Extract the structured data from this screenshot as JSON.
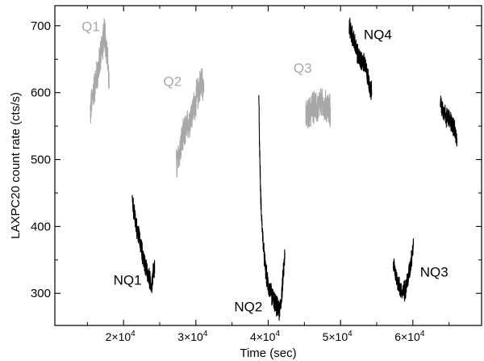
{
  "chart_data": {
    "type": "line",
    "xlabel": "Time (sec)",
    "ylabel": "LAXPC20 count rate (cts/s)",
    "xlim": [
      10500,
      69500
    ],
    "ylim": [
      252,
      730
    ],
    "grid": false,
    "x_ticks": [
      {
        "value": 20000,
        "mantissa": "2×10",
        "exp": "4"
      },
      {
        "value": 30000,
        "mantissa": "3×10",
        "exp": "4"
      },
      {
        "value": 40000,
        "mantissa": "4×10",
        "exp": "4"
      },
      {
        "value": 50000,
        "mantissa": "5×10",
        "exp": "4"
      },
      {
        "value": 60000,
        "mantissa": "6×10",
        "exp": "4"
      }
    ],
    "y_ticks": [
      300,
      400,
      500,
      600,
      700
    ],
    "colors": {
      "Q": "#a8a8a8",
      "NQ": "#000000",
      "axis": "#000000"
    },
    "segments": [
      {
        "label": "Q1",
        "class": "Q",
        "start": 15400,
        "end": 18000,
        "points": [
          [
            15400,
            570
          ],
          [
            15800,
            600
          ],
          [
            16200,
            620
          ],
          [
            16600,
            640
          ],
          [
            17000,
            670
          ],
          [
            17400,
            690
          ],
          [
            17800,
            650
          ],
          [
            18000,
            610
          ]
        ]
      },
      {
        "label": "Q2",
        "class": "Q",
        "start": 27300,
        "end": 31100,
        "points": [
          [
            27300,
            490
          ],
          [
            27800,
            515
          ],
          [
            28300,
            535
          ],
          [
            28800,
            550
          ],
          [
            29300,
            565
          ],
          [
            29800,
            580
          ],
          [
            30300,
            600
          ],
          [
            30800,
            620
          ],
          [
            31100,
            610
          ]
        ]
      },
      {
        "label": "Q3",
        "class": "Q",
        "start": 45200,
        "end": 48600,
        "points": [
          [
            45200,
            560
          ],
          [
            45700,
            570
          ],
          [
            46200,
            580
          ],
          [
            46700,
            575
          ],
          [
            47200,
            585
          ],
          [
            47700,
            575
          ],
          [
            48200,
            580
          ],
          [
            48600,
            570
          ]
        ]
      },
      {
        "label": "NQ1",
        "class": "NQ",
        "start": 21200,
        "end": 24300,
        "points": [
          [
            21200,
            440
          ],
          [
            21600,
            410
          ],
          [
            22000,
            390
          ],
          [
            22400,
            370
          ],
          [
            22800,
            350
          ],
          [
            23200,
            335
          ],
          [
            23600,
            320
          ],
          [
            23900,
            312
          ],
          [
            24100,
            330
          ],
          [
            24300,
            342
          ]
        ]
      },
      {
        "label": "NQ2",
        "class": "NQ",
        "start": 38700,
        "end": 42300,
        "points": [
          [
            38700,
            595
          ],
          [
            38800,
            520
          ],
          [
            38950,
            450
          ],
          [
            39150,
            400
          ],
          [
            39400,
            360
          ],
          [
            39700,
            330
          ],
          [
            40000,
            312
          ],
          [
            40400,
            300
          ],
          [
            40800,
            290
          ],
          [
            41200,
            280
          ],
          [
            41500,
            272
          ],
          [
            41800,
            290
          ],
          [
            42100,
            330
          ],
          [
            42300,
            360
          ]
        ]
      },
      {
        "label": "NQ3",
        "class": "NQ",
        "start": 57300,
        "end": 60100,
        "points": [
          [
            57300,
            345
          ],
          [
            57700,
            325
          ],
          [
            58100,
            312
          ],
          [
            58500,
            300
          ],
          [
            58900,
            305
          ],
          [
            59300,
            320
          ],
          [
            59700,
            345
          ],
          [
            60100,
            375
          ]
        ]
      },
      {
        "label": "NQ4",
        "class": "NQ",
        "start": 51200,
        "end": 54300,
        "points": [
          [
            51200,
            700
          ],
          [
            51600,
            685
          ],
          [
            52000,
            672
          ],
          [
            52400,
            655
          ],
          [
            52800,
            648
          ],
          [
            53200,
            645
          ],
          [
            53600,
            632
          ],
          [
            54000,
            612
          ],
          [
            54300,
            600
          ]
        ]
      },
      {
        "label": "",
        "class": "NQ",
        "start": 63800,
        "end": 66100,
        "points": [
          [
            63800,
            585
          ],
          [
            64200,
            575
          ],
          [
            64600,
            565
          ],
          [
            65000,
            560
          ],
          [
            65400,
            555
          ],
          [
            65800,
            545
          ],
          [
            66100,
            525
          ]
        ]
      }
    ],
    "annotations": [
      {
        "text": "Q1",
        "class": "Q",
        "x": 14200,
        "y": 692
      },
      {
        "text": "Q2",
        "class": "Q",
        "x": 25500,
        "y": 610
      },
      {
        "text": "Q3",
        "class": "Q",
        "x": 43500,
        "y": 630
      },
      {
        "text": "NQ1",
        "class": "NQ",
        "x": 18600,
        "y": 313
      },
      {
        "text": "NQ2",
        "class": "NQ",
        "x": 35300,
        "y": 273
      },
      {
        "text": "NQ3",
        "class": "NQ",
        "x": 61000,
        "y": 325
      },
      {
        "text": "NQ4",
        "class": "NQ",
        "x": 53200,
        "y": 680
      }
    ]
  }
}
